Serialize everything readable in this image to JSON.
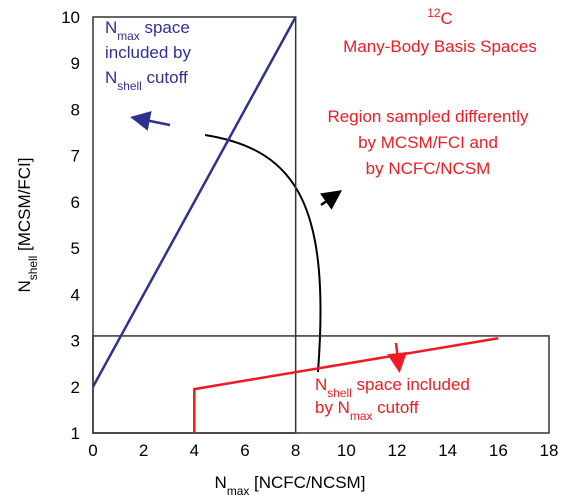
{
  "chart_data": {
    "type": "line",
    "title": [
      {
        "sup": "12"
      },
      {
        "t": "C"
      }
    ],
    "subtitle": "Many-Body Basis Spaces",
    "x_label": [
      {
        "t": "N"
      },
      {
        "sub": "max"
      },
      {
        "t": "  [NCFC/NCSM]"
      }
    ],
    "y_label": [
      {
        "t": "N"
      },
      {
        "sub": "shell"
      },
      {
        "t": "  [MCSM/FCI]"
      }
    ],
    "xlim": [
      0,
      18
    ],
    "ylim": [
      1,
      10
    ],
    "xticks": [
      0,
      2,
      4,
      6,
      8,
      10,
      12,
      14,
      16,
      18
    ],
    "yticks": [
      1,
      2,
      3,
      4,
      5,
      6,
      7,
      8,
      9,
      10
    ],
    "series": [
      {
        "color": "#2e3192",
        "x": [
          0,
          8
        ],
        "values": [
          2,
          10
        ]
      },
      {
        "color": "#ed1c24",
        "x": [
          4,
          4,
          16
        ],
        "values": [
          1,
          1.95,
          3.05
        ]
      }
    ],
    "regions": [
      {
        "xlim": [
          0,
          8
        ],
        "ylim": [
          1,
          10
        ]
      },
      {
        "xlim": [
          0,
          18
        ],
        "ylim": [
          1,
          3.1
        ]
      }
    ],
    "annotations": [
      {
        "color": "#2e3192",
        "lines": [
          [
            {
              "t": "N"
            },
            {
              "sub": "max"
            },
            {
              "t": " space"
            }
          ],
          [
            {
              "t": "included by"
            }
          ],
          [
            {
              "t": "N"
            },
            {
              "sub": "shell"
            },
            {
              "t": " cutoff"
            }
          ]
        ]
      },
      {
        "color": "#ed1c24",
        "lines": [
          [
            {
              "t": "Region sampled differently"
            }
          ],
          [
            {
              "t": "by MCSM/FCI and"
            }
          ],
          [
            {
              "t": "by NCFC/NCSM"
            }
          ]
        ]
      },
      {
        "color": "#ed1c24",
        "lines": [
          [
            {
              "t": "N"
            },
            {
              "sub": "shell"
            },
            {
              "t": " space included"
            }
          ],
          [
            {
              "t": "by N"
            },
            {
              "sub": "max"
            },
            {
              "t": " cutoff"
            }
          ]
        ]
      }
    ]
  }
}
